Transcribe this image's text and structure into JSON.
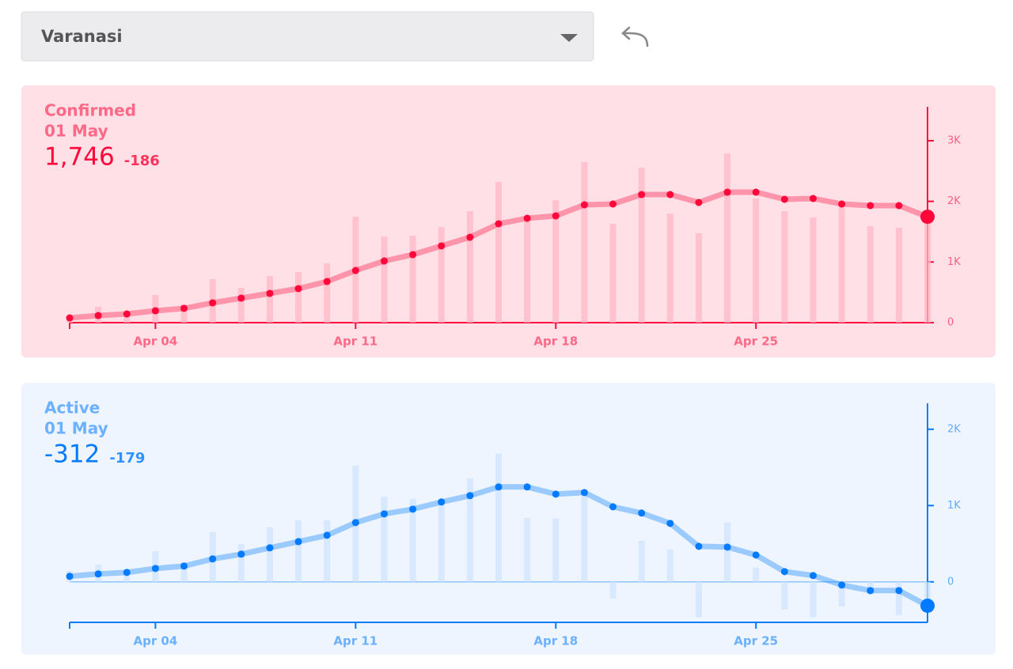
{
  "dropdown": {
    "value": "Varanasi"
  },
  "chart_data": [
    {
      "type": "line",
      "title": "Confirmed",
      "subtitle": "01 May",
      "current": "1,746",
      "delta": "-186",
      "color": "#ff073a",
      "background": "#ffe0e6",
      "categories": [
        null,
        null,
        null,
        "Apr 04",
        null,
        null,
        null,
        null,
        null,
        null,
        "Apr 11",
        null,
        null,
        null,
        null,
        null,
        null,
        "Apr 18",
        null,
        null,
        null,
        null,
        null,
        null,
        "Apr 25",
        null,
        null,
        null,
        null,
        null,
        null
      ],
      "ylim": [
        0,
        3560
      ],
      "yticks": [
        0,
        {
          "value": 1000,
          "label": "1K"
        },
        {
          "value": 2000,
          "label": "2K"
        },
        {
          "value": 3000,
          "label": "3K"
        }
      ],
      "series": [
        {
          "type": "bar",
          "color": "#ffb8c6",
          "values": [
            104,
            260,
            170,
            456,
            300,
            717,
            574,
            769,
            834,
            978,
            1747,
            1421,
            1434,
            1577,
            1838,
            2320,
            1669,
            2021,
            2647,
            1630,
            2555,
            1799,
            1473,
            2790,
            2047,
            1838,
            1734,
            1916,
            1590,
            1565,
            1746
          ]
        },
        {
          "type": "line",
          "color": "#ff073a",
          "values": [
            78,
            117,
            143,
            196,
            235,
            326,
            404,
            482,
            561,
            678,
            860,
            1017,
            1121,
            1265,
            1408,
            1630,
            1721,
            1760,
            1943,
            1956,
            2112,
            2112,
            1982,
            2151,
            2151,
            2034,
            2047,
            1956,
            1930,
            1930,
            1746
          ]
        }
      ]
    },
    {
      "type": "line",
      "title": "Active",
      "subtitle": "01 May",
      "current": "-312",
      "delta": "-179",
      "color": "#007bff",
      "background": "#eef5ff",
      "categories": [
        null,
        null,
        null,
        "Apr 04",
        null,
        null,
        null,
        null,
        null,
        null,
        "Apr 11",
        null,
        null,
        null,
        null,
        null,
        null,
        "Apr 18",
        null,
        null,
        null,
        null,
        null,
        null,
        "Apr 25",
        null,
        null,
        null,
        null,
        null,
        null
      ],
      "ylim": [
        -530,
        2340
      ],
      "yticks": [
        0,
        {
          "value": 1000,
          "label": "1K"
        },
        {
          "value": 2000,
          "label": "2K"
        }
      ],
      "series": [
        {
          "type": "bar",
          "color": "#cfe3ff",
          "values": [
            145,
            228,
            166,
            404,
            259,
            653,
            497,
            715,
            808,
            808,
            1523,
            1119,
            1088,
            1036,
            1358,
            1679,
            839,
            829,
            1150,
            -218,
            539,
            425,
            -466,
            777,
            187,
            -363,
            -466,
            -321,
            -166,
            -435,
            -312
          ]
        },
        {
          "type": "line",
          "color": "#007bff",
          "values": [
            73,
            104,
            124,
            176,
            207,
            301,
            363,
            446,
            528,
            611,
            777,
            891,
            953,
            1047,
            1130,
            1244,
            1244,
            1150,
            1171,
            984,
            902,
            767,
            466,
            456,
            352,
            135,
            83,
            -41,
            -114,
            -114,
            -312
          ]
        }
      ]
    }
  ]
}
